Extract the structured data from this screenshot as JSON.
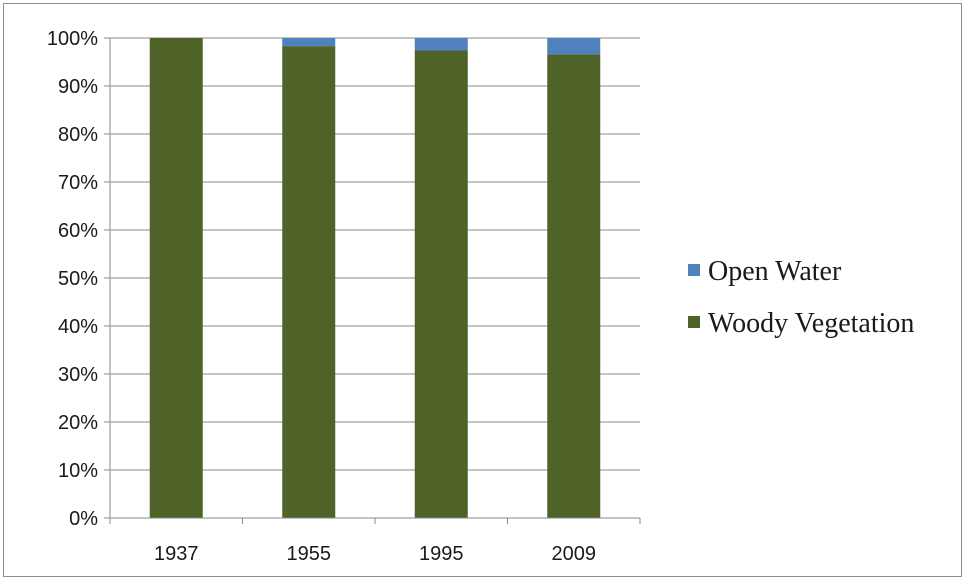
{
  "chart_data": {
    "type": "bar",
    "stacked": true,
    "percent": true,
    "title": "",
    "xlabel": "",
    "ylabel": "",
    "categories": [
      "1937",
      "1955",
      "1995",
      "2009"
    ],
    "series": [
      {
        "name": "Woody Vegetation",
        "values": [
          100,
          98.3,
          97.4,
          96.6
        ],
        "color": "#4f6228"
      },
      {
        "name": "Open Water",
        "values": [
          0,
          1.7,
          2.6,
          3.4
        ],
        "color": "#4f81bd"
      }
    ],
    "ylim": [
      0,
      100
    ],
    "yticks": [
      "0%",
      "10%",
      "20%",
      "30%",
      "40%",
      "50%",
      "60%",
      "70%",
      "80%",
      "90%",
      "100%"
    ],
    "grid": true,
    "legend": {
      "position": "right",
      "entries": [
        "Open Water",
        "Woody Vegetation"
      ]
    }
  }
}
